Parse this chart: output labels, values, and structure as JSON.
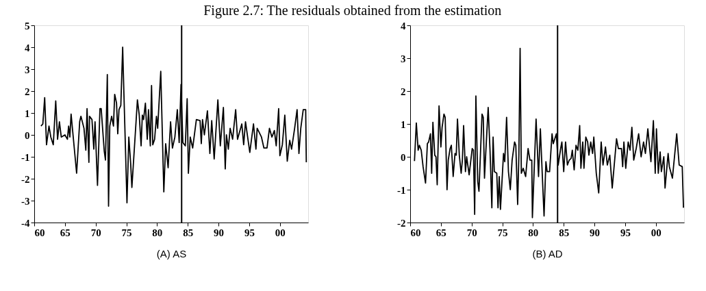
{
  "chart_data": [
    {
      "type": "line",
      "title": "Figure 2.7: The residuals obtained from the estimation",
      "xlabel": "(A) AS",
      "x": [
        1961.1,
        1961.4,
        1961.7,
        1962.0,
        1962.4,
        1962.7,
        1963.1,
        1963.5,
        1963.8,
        1964.1,
        1964.4,
        1965.0,
        1965.4,
        1965.6,
        1965.8,
        1966.0,
        1966.9,
        1967.4,
        1967.6,
        1968.1,
        1968.4,
        1968.6,
        1968.9,
        1969.0,
        1969.4,
        1969.7,
        1969.9,
        1970.3,
        1970.7,
        1970.9,
        1971.4,
        1971.6,
        1971.9,
        1972.1,
        1972.3,
        1972.6,
        1972.9,
        1973.1,
        1973.4,
        1973.6,
        1973.8,
        1974.1,
        1974.4,
        1974.6,
        1975.1,
        1975.4,
        1975.7,
        1975.9,
        1976.6,
        1976.8,
        1977.1,
        1977.4,
        1977.6,
        1977.8,
        1978.1,
        1978.4,
        1978.6,
        1978.9,
        1979.1,
        1979.3,
        1979.6,
        1979.9,
        1980.1,
        1980.6,
        1981.1,
        1981.4,
        1981.8,
        1982.2,
        1982.5,
        1982.9,
        1983.3,
        1983.6,
        1983.9,
        1984.2,
        1984.6,
        1984.9,
        1985.1,
        1985.4,
        1985.8,
        1986.4,
        1987.0,
        1987.2,
        1987.4,
        1987.7,
        1988.2,
        1988.6,
        1988.9,
        1989.3,
        1989.9,
        1990.3,
        1990.8,
        1991.1,
        1991.3,
        1991.6,
        1991.9,
        1992.3,
        1992.8,
        1993.1,
        1993.8,
        1994.1,
        1994.4,
        1995.1,
        1995.7,
        1996.1,
        1996.3,
        1997.0,
        1997.4,
        1997.9,
        1998.3,
        1998.7,
        1999.1,
        1999.4,
        1999.8,
        2000.0,
        2000.4,
        2000.8,
        2001.2,
        2001.6,
        2001.9,
        2002.4,
        2002.8,
        2003.1,
        2003.4,
        2003.8,
        2004.2,
        2004.3
      ],
      "series": [
        {
          "color": "#000000",
          "values": [
            0.4,
            0.5,
            1.7,
            -0.45,
            0.4,
            -0.1,
            -0.45,
            1.55,
            -0.2,
            0.6,
            -0.1,
            0.0,
            -0.2,
            0.4,
            -0.1,
            0.95,
            -1.75,
            0.6,
            0.85,
            0.3,
            -0.7,
            1.2,
            -1.25,
            0.85,
            0.7,
            -0.65,
            0.6,
            -2.3,
            1.2,
            1.2,
            -0.75,
            -1.15,
            2.75,
            -3.25,
            0.4,
            0.85,
            0.4,
            1.85,
            1.45,
            0.05,
            1.15,
            1.35,
            4.0,
            1.9,
            -3.1,
            -0.1,
            -1.3,
            -2.4,
            0.7,
            1.6,
            0.9,
            -0.5,
            0.9,
            0.7,
            1.45,
            -0.2,
            1.15,
            -0.5,
            2.25,
            -0.45,
            -0.2,
            0.85,
            0.3,
            2.9,
            -2.6,
            -0.4,
            -1.5,
            0.6,
            -0.6,
            -0.1,
            1.15,
            -0.35,
            2.3,
            -0.35,
            -0.5,
            1.65,
            -1.75,
            -0.1,
            -0.6,
            0.7,
            0.65,
            -0.4,
            0.7,
            0.0,
            1.1,
            -0.85,
            0.65,
            -1.1,
            1.6,
            -0.5,
            1.25,
            -1.55,
            0.0,
            -0.65,
            0.3,
            -0.2,
            1.15,
            -0.2,
            0.5,
            -0.45,
            0.6,
            -0.8,
            0.5,
            -0.65,
            0.3,
            -0.1,
            -0.6,
            -0.6,
            0.3,
            -0.1,
            0.2,
            -0.5,
            1.2,
            -0.95,
            -0.45,
            0.9,
            -1.2,
            -0.25,
            -0.65,
            0.3,
            1.15,
            -0.85,
            0.3,
            1.15,
            1.15,
            -1.25
          ]
        }
      ],
      "xlim": [
        1960,
        2004.6
      ],
      "ylim": [
        -4,
        5
      ],
      "xticks": [
        {
          "value": 1960,
          "label": "60"
        },
        {
          "value": 1965,
          "label": "65"
        },
        {
          "value": 1970,
          "label": "70"
        },
        {
          "value": 1975,
          "label": "75"
        },
        {
          "value": 1980,
          "label": "80"
        },
        {
          "value": 1985,
          "label": "85"
        },
        {
          "value": 1990,
          "label": "90"
        },
        {
          "value": 1995,
          "label": "95"
        },
        {
          "value": 2000,
          "label": "00"
        }
      ],
      "yticks": [
        -4,
        -3,
        -2,
        -1,
        0,
        1,
        2,
        3,
        4,
        5
      ],
      "ref_lines": [
        {
          "axis": "x",
          "value": 1984,
          "color": "#000000"
        }
      ],
      "grid": false
    },
    {
      "type": "line",
      "xlabel": "(B) AD",
      "x": [
        1960.7,
        1961.0,
        1961.3,
        1961.5,
        1961.8,
        1962.1,
        1962.5,
        1962.8,
        1963.0,
        1963.3,
        1963.5,
        1963.7,
        1964.0,
        1964.2,
        1964.4,
        1964.7,
        1965.0,
        1965.2,
        1965.5,
        1965.7,
        1966.0,
        1966.2,
        1966.5,
        1966.7,
        1967.0,
        1967.3,
        1967.5,
        1967.7,
        1968.0,
        1968.3,
        1968.5,
        1968.7,
        1969.0,
        1969.2,
        1969.6,
        1970.1,
        1970.3,
        1970.5,
        1970.7,
        1971.0,
        1971.2,
        1971.7,
        1971.9,
        1972.1,
        1972.4,
        1972.7,
        1973.0,
        1973.3,
        1973.5,
        1973.7,
        1974.1,
        1974.3,
        1974.5,
        1974.7,
        1975.2,
        1975.4,
        1975.7,
        1976.0,
        1976.3,
        1976.6,
        1977.0,
        1977.2,
        1977.5,
        1977.7,
        1977.9,
        1978.1,
        1978.4,
        1978.8,
        1979.2,
        1979.5,
        1979.8,
        1979.9,
        1980.5,
        1980.9,
        1981.2,
        1981.5,
        1981.8,
        1982.1,
        1982.3,
        1982.7,
        1983.1,
        1983.3,
        1983.8,
        1984.1,
        1984.5,
        1984.7,
        1985.0,
        1985.3,
        1985.6,
        1985.9,
        1986.2,
        1986.4,
        1986.7,
        1987.0,
        1987.3,
        1987.6,
        1987.8,
        1988.1,
        1988.3,
        1988.6,
        1988.9,
        1989.1,
        1989.4,
        1989.7,
        1989.9,
        1990.3,
        1990.7,
        1991.1,
        1991.4,
        1991.8,
        1992.1,
        1992.5,
        1992.9,
        1993.6,
        1993.9,
        1994.4,
        1994.6,
        1994.8,
        1995.1,
        1995.5,
        1995.8,
        1996.1,
        1996.4,
        1996.8,
        1997.2,
        1997.6,
        1998.0,
        1998.3,
        1998.7,
        1999.2,
        1999.6,
        1999.9,
        2000.1,
        2000.4,
        2000.7,
        2000.9,
        2001.3,
        2001.5,
        2002.0,
        2002.2,
        2002.7,
        2003.4,
        2003.8,
        2004.3,
        2004.5
      ],
      "series": [
        {
          "color": "#000000",
          "values": [
            -0.13,
            1.03,
            0.2,
            0.35,
            0.2,
            -0.3,
            -0.8,
            0.4,
            0.45,
            0.7,
            -0.5,
            1.05,
            0.05,
            0.0,
            -0.85,
            1.55,
            0.3,
            0.9,
            1.3,
            1.2,
            -1.0,
            -0.1,
            0.25,
            0.35,
            -0.6,
            0.1,
            0.05,
            1.15,
            0.05,
            -0.5,
            -0.1,
            0.95,
            -0.45,
            0.0,
            -0.55,
            0.25,
            0.2,
            -1.75,
            1.85,
            -0.75,
            -1.05,
            1.3,
            1.2,
            -0.65,
            0.45,
            1.5,
            0.2,
            -1.55,
            0.6,
            -0.45,
            -0.5,
            -1.55,
            -0.6,
            -1.6,
            0.1,
            -0.15,
            1.2,
            -0.45,
            -1.0,
            -0.1,
            0.45,
            0.35,
            -1.45,
            0.05,
            3.3,
            -0.5,
            -0.35,
            -0.6,
            0.25,
            -0.1,
            -0.1,
            -1.85,
            1.15,
            -0.6,
            0.85,
            -0.5,
            -1.8,
            -0.15,
            -0.45,
            -0.45,
            0.7,
            0.4,
            0.7,
            -0.25,
            0.25,
            0.45,
            -0.45,
            0.45,
            -0.25,
            -0.1,
            -0.05,
            0.2,
            -0.4,
            0.35,
            0.2,
            0.95,
            -0.35,
            0.45,
            -0.35,
            0.6,
            0.45,
            0.05,
            0.45,
            0.1,
            0.6,
            -0.5,
            -1.1,
            0.45,
            -0.25,
            0.3,
            -0.25,
            0.05,
            -0.95,
            0.55,
            0.25,
            0.25,
            -0.3,
            0.45,
            -0.35,
            0.45,
            0.2,
            0.9,
            -0.1,
            0.25,
            0.7,
            0.0,
            0.45,
            0.1,
            0.85,
            -0.15,
            1.1,
            -0.5,
            0.85,
            -0.5,
            0.15,
            -0.45,
            0.0,
            -0.95,
            0.1,
            -0.3,
            -0.65,
            0.7,
            -0.25,
            -0.3,
            -1.55
          ]
        }
      ],
      "xlim": [
        1960,
        2004.6
      ],
      "ylim": [
        -2,
        4
      ],
      "xticks": [
        {
          "value": 1960,
          "label": "60"
        },
        {
          "value": 1965,
          "label": "65"
        },
        {
          "value": 1970,
          "label": "70"
        },
        {
          "value": 1975,
          "label": "75"
        },
        {
          "value": 1980,
          "label": "80"
        },
        {
          "value": 1985,
          "label": "85"
        },
        {
          "value": 1990,
          "label": "90"
        },
        {
          "value": 1995,
          "label": "95"
        },
        {
          "value": 2000,
          "label": "00"
        }
      ],
      "yticks": [
        -2,
        -1,
        0,
        1,
        2,
        3,
        4
      ],
      "ref_lines": [
        {
          "axis": "x",
          "value": 1984,
          "color": "#000000"
        }
      ],
      "grid": false
    }
  ]
}
